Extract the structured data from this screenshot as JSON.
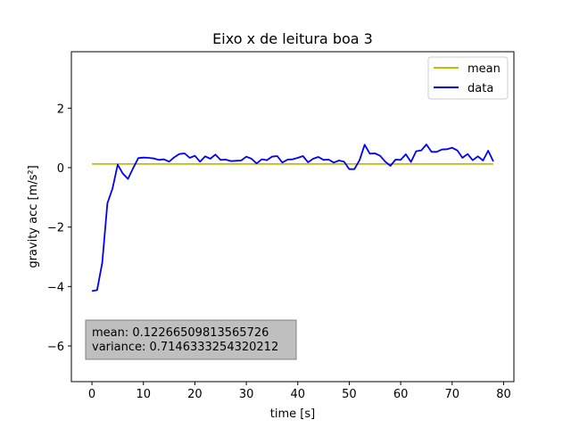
{
  "chart_data": {
    "type": "line",
    "title": "Eixo x de leitura boa 3",
    "xlabel": "time [s]",
    "ylabel": "gravity acc [m/s²]",
    "xlim": [
      -4,
      82
    ],
    "ylim": [
      -7.2,
      3.9
    ],
    "xticks": [
      0,
      10,
      20,
      30,
      40,
      50,
      60,
      70,
      80
    ],
    "yticks": [
      -6,
      -4,
      -2,
      0,
      2
    ],
    "legend_position": "top-right",
    "series": [
      {
        "name": "mean",
        "color": "#bfbf00",
        "x": [
          0,
          78
        ],
        "y": [
          0.12266509813565726,
          0.12266509813565726
        ]
      },
      {
        "name": "data",
        "color": "#0000ff",
        "x": [
          0,
          1,
          2,
          3,
          4,
          5,
          6,
          7,
          8,
          9,
          10,
          11,
          12,
          13,
          14,
          15,
          16,
          17,
          18,
          19,
          20,
          21,
          22,
          23,
          24,
          25,
          26,
          27,
          28,
          29,
          30,
          31,
          32,
          33,
          34,
          35,
          36,
          37,
          38,
          39,
          40,
          41,
          42,
          43,
          44,
          45,
          46,
          47,
          48,
          49,
          50,
          51,
          52,
          53,
          54,
          55,
          56,
          57,
          58,
          59,
          60,
          61,
          62,
          63,
          64,
          65,
          66,
          67,
          68,
          69,
          70,
          71,
          72,
          73,
          74,
          75,
          76,
          77,
          78
        ],
        "y": [
          -4.15,
          -4.12,
          -3.2,
          -1.2,
          -0.7,
          0.1,
          -0.2,
          -0.38,
          -0.02,
          0.32,
          0.34,
          0.33,
          0.31,
          0.26,
          0.28,
          0.2,
          0.35,
          0.46,
          0.48,
          0.33,
          0.4,
          0.2,
          0.38,
          0.3,
          0.44,
          0.26,
          0.27,
          0.22,
          0.23,
          0.24,
          0.37,
          0.3,
          0.14,
          0.28,
          0.25,
          0.37,
          0.39,
          0.17,
          0.27,
          0.28,
          0.33,
          0.39,
          0.18,
          0.3,
          0.36,
          0.26,
          0.27,
          0.17,
          0.24,
          0.2,
          -0.05,
          -0.05,
          0.25,
          0.77,
          0.47,
          0.48,
          0.4,
          0.2,
          0.06,
          0.27,
          0.26,
          0.45,
          0.19,
          0.55,
          0.58,
          0.78,
          0.53,
          0.53,
          0.61,
          0.62,
          0.67,
          0.58,
          0.33,
          0.46,
          0.25,
          0.38,
          0.24,
          0.57,
          0.21
        ]
      }
    ],
    "stats_box": {
      "mean_text": "mean: 0.12266509813565726",
      "variance_text": "variance: 0.7146333254320212"
    }
  }
}
